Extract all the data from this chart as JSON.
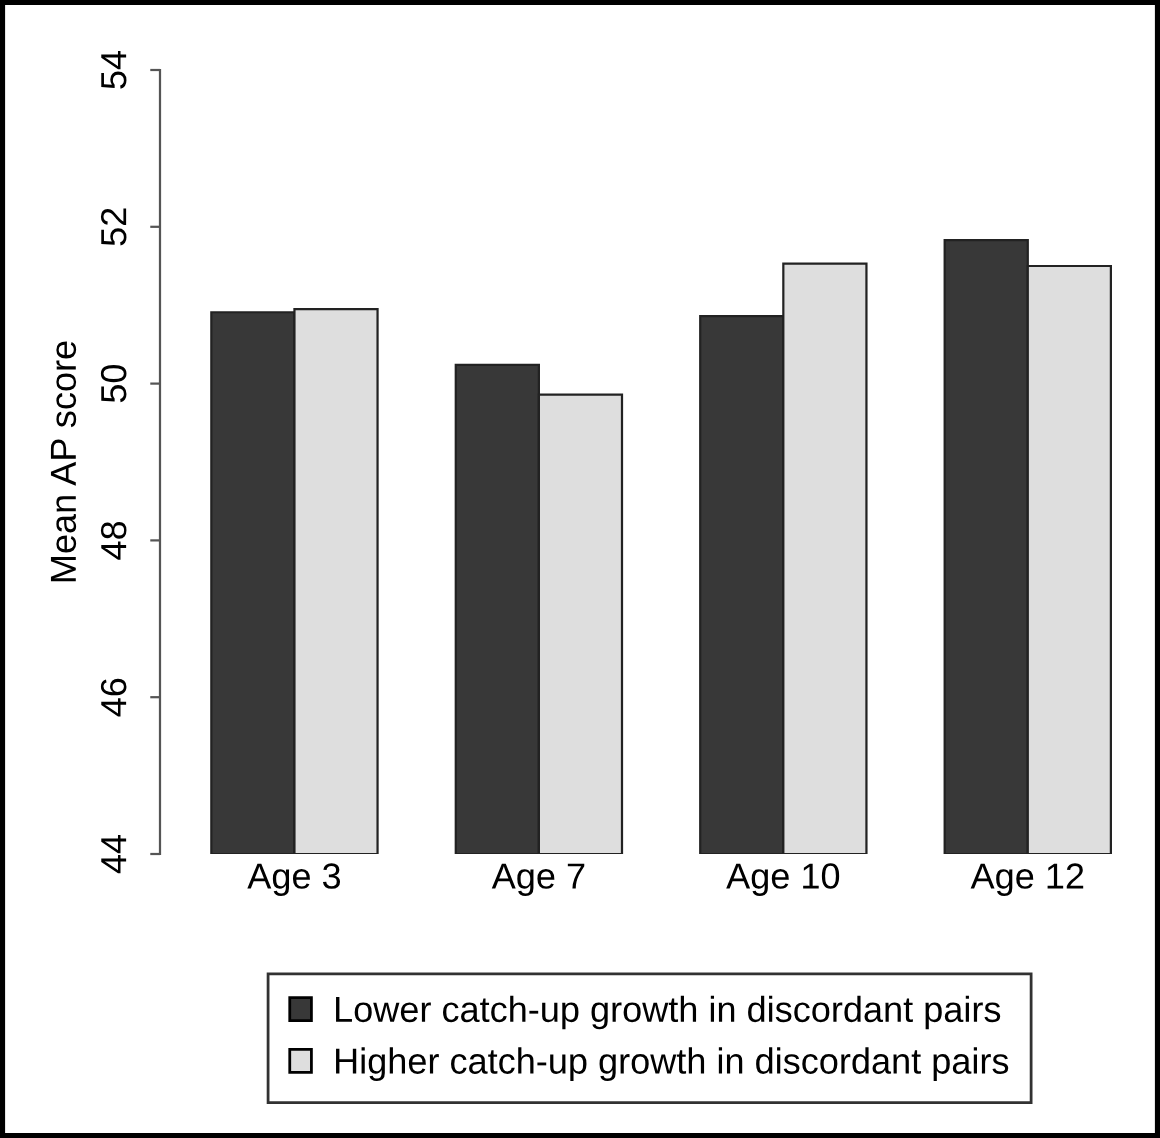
{
  "chart_data": {
    "type": "bar",
    "ylabel": "Mean AP score",
    "categories": [
      "Age 3",
      "Age 7",
      "Age 10",
      "Age 12"
    ],
    "series": [
      {
        "name": "Lower catch-up growth in discordant pairs",
        "color": "#383838",
        "values": [
          50.91,
          50.24,
          50.86,
          51.83
        ]
      },
      {
        "name": "Higher catch-up growth in discordant pairs",
        "color": "#dedede",
        "values": [
          50.95,
          49.86,
          51.53,
          51.5
        ]
      }
    ],
    "ylim": [
      44,
      54
    ],
    "yticks": [
      44,
      46,
      48,
      50,
      52,
      54
    ],
    "grid": false,
    "legend": "bottom"
  }
}
